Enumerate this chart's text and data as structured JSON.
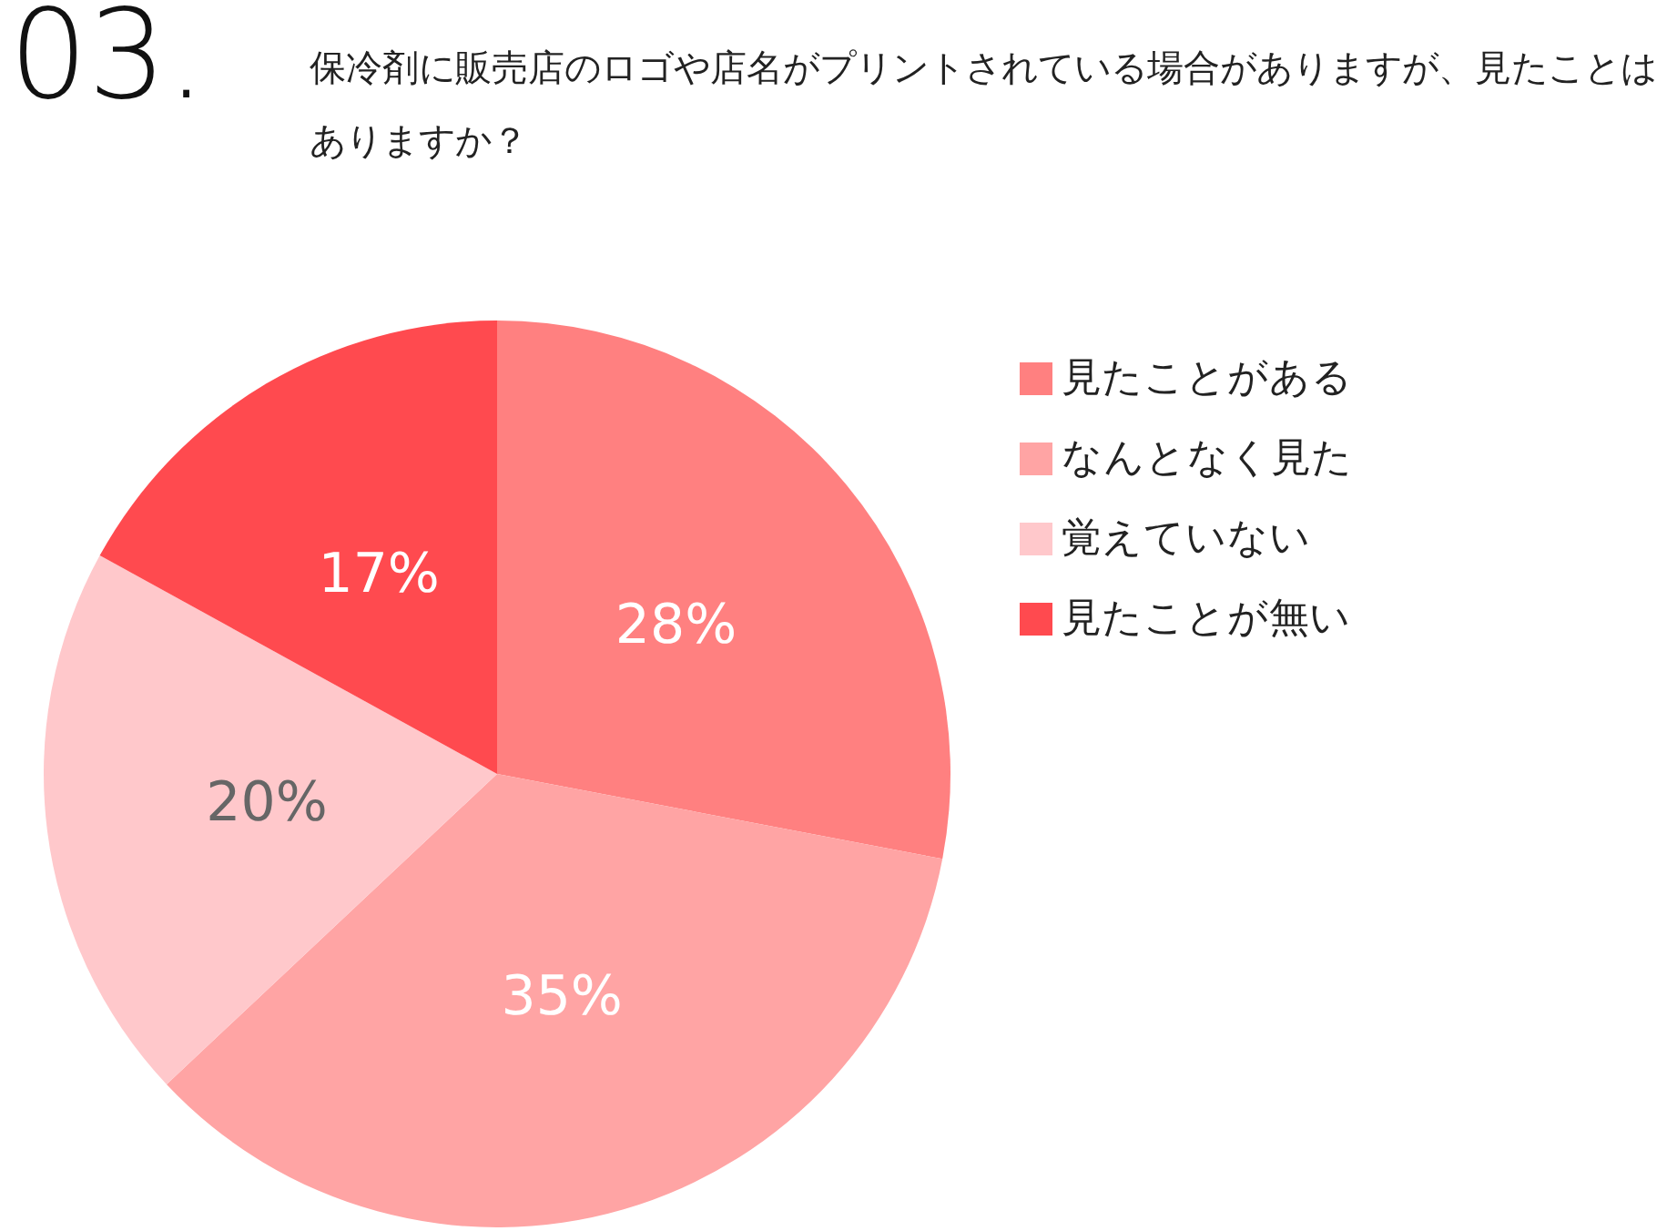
{
  "chart_data": {
    "type": "pie",
    "title": "03.",
    "subtitle": "保冷剤に販売店のロゴや店名がプリントされている場合がありますが、見たことはありますか？",
    "categories": [
      "見たことがある",
      "なんとなく見た",
      "覚えていない",
      "見たことが無い"
    ],
    "values": [
      28,
      35,
      20,
      17
    ],
    "value_labels": [
      "28%",
      "35%",
      "20%",
      "17%"
    ],
    "colors": [
      "#ff8080",
      "#ffa4a4",
      "#ffc8cb",
      "#ff4a4f"
    ],
    "legend": "right"
  }
}
